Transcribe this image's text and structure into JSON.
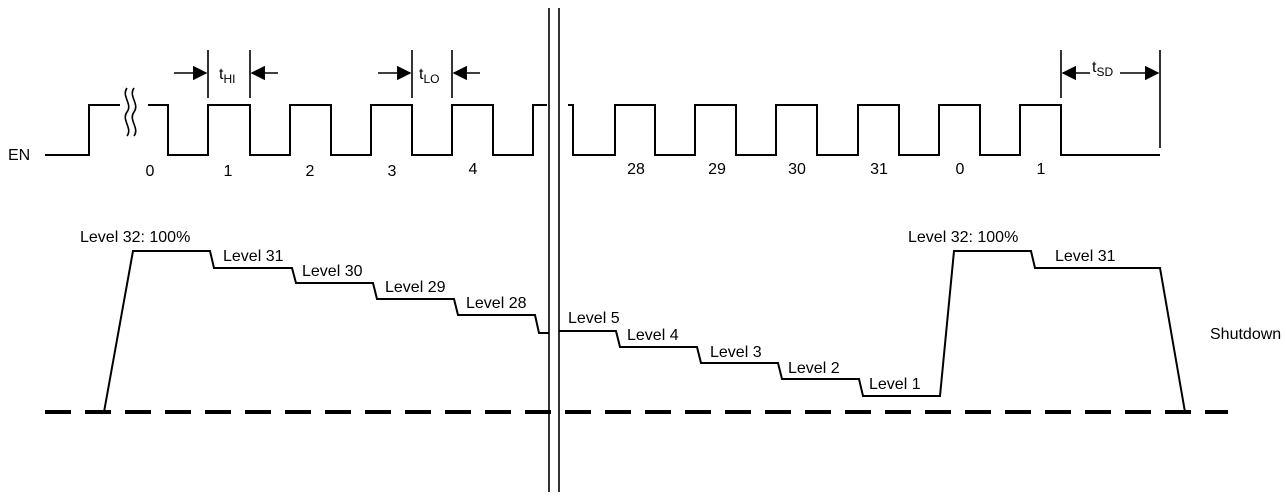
{
  "signal": {
    "name": "EN",
    "pulse_numbers_left": [
      "0",
      "1",
      "2",
      "3",
      "4"
    ],
    "pulse_numbers_right": [
      "28",
      "29",
      "30",
      "31",
      "0",
      "1"
    ]
  },
  "timing": {
    "t_hi": {
      "main": "t",
      "sub": "HI"
    },
    "t_lo": {
      "main": "t",
      "sub": "LO"
    },
    "t_sd": {
      "main": "t",
      "sub": "SD"
    }
  },
  "levels": {
    "left": [
      "Level 32: 100%",
      "Level 31",
      "Level 30",
      "Level 29",
      "Level 28"
    ],
    "right_descending": [
      "Level 5",
      "Level 4",
      "Level 3",
      "Level 2",
      "Level 1"
    ],
    "right_recovered": [
      "Level 32: 100%",
      "Level 31"
    ],
    "shutdown": "Shutdown"
  },
  "colors": {
    "ink": "#000000",
    "background": "#ffffff"
  }
}
